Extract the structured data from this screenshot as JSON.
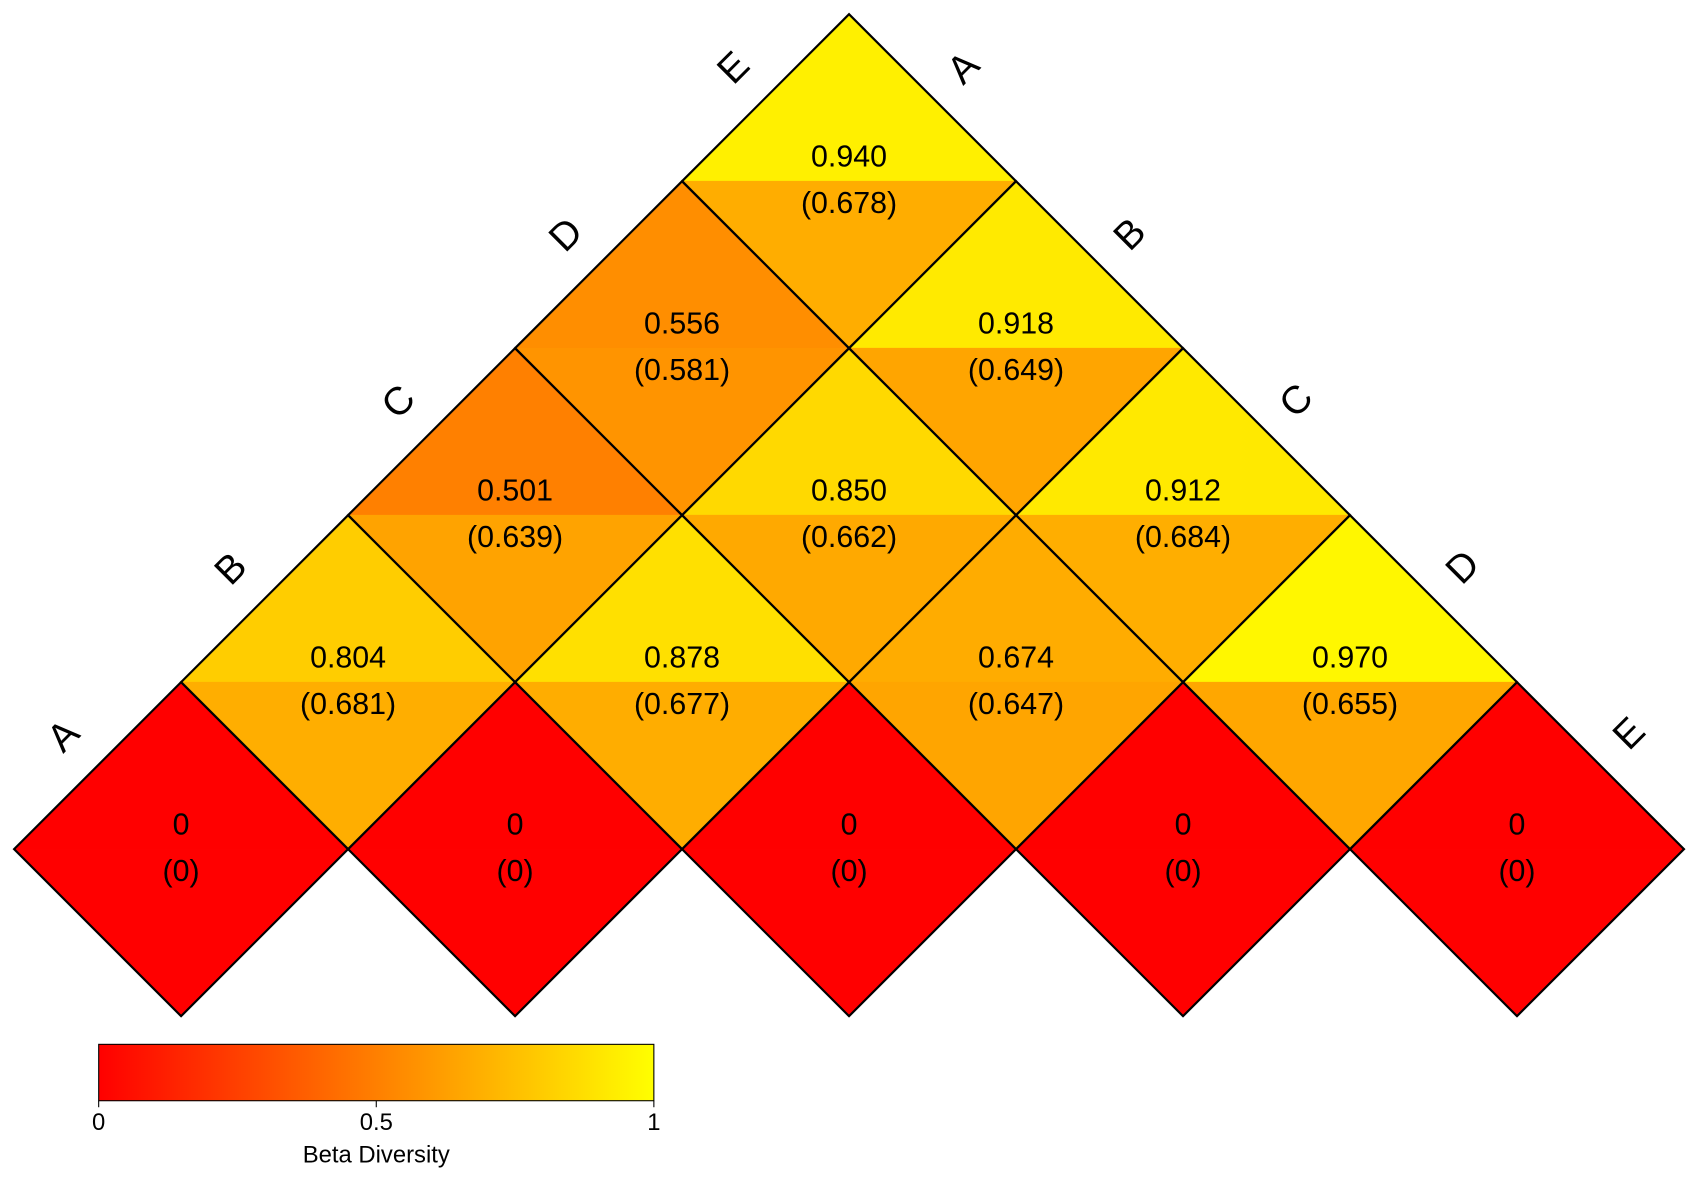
{
  "chart_data": {
    "type": "heatmap",
    "row_labels": [
      "A",
      "B",
      "C",
      "D",
      "E"
    ],
    "col_labels": [
      "A",
      "B",
      "C",
      "D",
      "E"
    ],
    "values": [
      [
        0
      ],
      [
        0.804,
        0
      ],
      [
        0.501,
        0.878,
        0
      ],
      [
        0.556,
        0.85,
        0.674,
        0
      ],
      [
        0.94,
        0.918,
        0.912,
        0.97,
        0
      ]
    ],
    "value_labels": [
      [
        "0"
      ],
      [
        "0.804",
        "0"
      ],
      [
        "0.501",
        "0.878",
        "0"
      ],
      [
        "0.556",
        "0.850",
        "0.674",
        "0"
      ],
      [
        "0.940",
        "0.918",
        "0.912",
        "0.970",
        "0"
      ]
    ],
    "values_lower": [
      [
        0
      ],
      [
        0.681,
        0
      ],
      [
        0.639,
        0.677,
        0
      ],
      [
        0.581,
        0.662,
        0.647,
        0
      ],
      [
        0.678,
        0.649,
        0.684,
        0.655,
        0
      ]
    ],
    "value_lower_labels": [
      [
        "(0)"
      ],
      [
        "(0.681)",
        "(0)"
      ],
      [
        "(0.639)",
        "(0.677)",
        "(0)"
      ],
      [
        "(0.581)",
        "(0.662)",
        "(0.647)",
        "(0)"
      ],
      [
        "(0.678)",
        "(0.649)",
        "(0.684)",
        "(0.655)",
        "(0)"
      ]
    ],
    "colorbar": {
      "title": "Beta Diversity",
      "lim": [
        0,
        1
      ],
      "ticks": [
        0,
        0.5,
        1
      ],
      "colors": [
        "#ff0000",
        "#ffff00"
      ]
    }
  }
}
